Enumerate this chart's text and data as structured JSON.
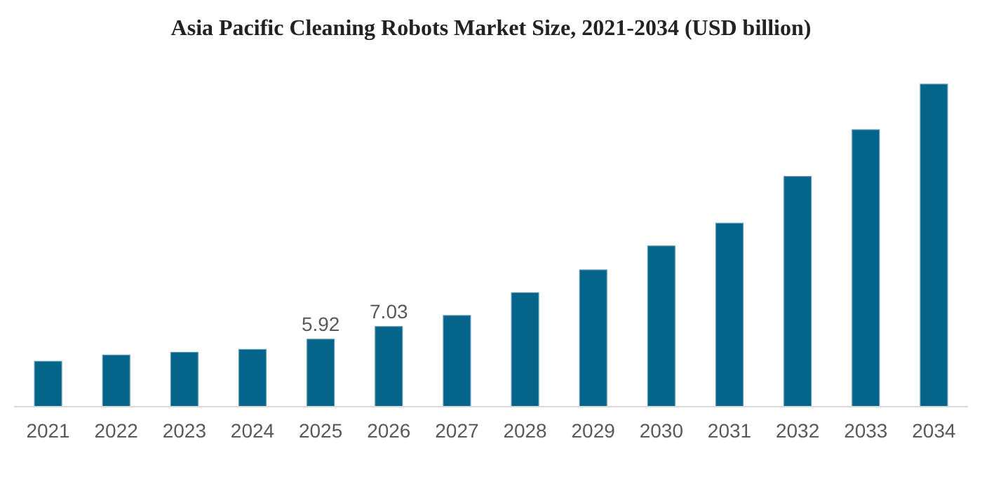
{
  "chart_data": {
    "type": "bar",
    "title": "Asia Pacific Cleaning Robots Market Size, 2021-2034 (USD billion)",
    "categories": [
      "2021",
      "2022",
      "2023",
      "2024",
      "2025",
      "2026",
      "2027",
      "2028",
      "2029",
      "2030",
      "2031",
      "2032",
      "2033",
      "2034"
    ],
    "values": [
      3.98,
      4.53,
      4.77,
      5.02,
      5.92,
      7.03,
      8.0,
      10.0,
      12.0,
      14.1,
      16.1,
      20.2,
      24.3,
      28.3
    ],
    "value_labels": [
      null,
      null,
      null,
      null,
      "5.92",
      "7.03",
      null,
      null,
      null,
      null,
      null,
      null,
      null,
      null
    ],
    "color": "#05648a"
  }
}
